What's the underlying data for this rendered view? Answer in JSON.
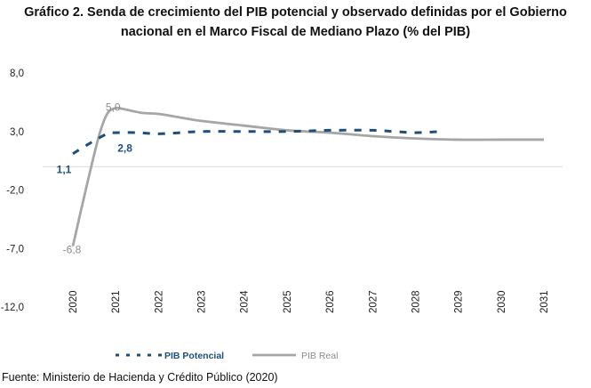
{
  "chart_data": {
    "type": "line",
    "title_line1": "Gráfico 2. Senda de crecimiento del PIB potencial y observado definidas por el Gobierno",
    "title_line2": "nacional en el Marco Fiscal de Mediano Plazo (% del PIB)",
    "xlabel": "",
    "ylabel": "",
    "ylim": [
      -12,
      8
    ],
    "yticks": [
      8,
      3,
      -2,
      -7,
      -12
    ],
    "ytick_labels": [
      "8,0",
      "3,0",
      "-2,0",
      "-7,0",
      "-12,0"
    ],
    "categories": [
      "2020",
      "2021",
      "2022",
      "2023",
      "2024",
      "2025",
      "2026",
      "2027",
      "2028",
      "2029",
      "2030",
      "2031"
    ],
    "xlim": [
      2020,
      2031
    ],
    "series": [
      {
        "name": "PIB Potencial",
        "color": "#1f4e79",
        "style": "dashed",
        "x": [
          2020,
          2020.4,
          2020.8,
          2021,
          2021.5,
          2022,
          2022.5,
          2023,
          2024,
          2025,
          2026,
          2027,
          2027.5,
          2028,
          2028.6
        ],
        "values": [
          1.1,
          2.0,
          2.8,
          2.9,
          2.9,
          2.8,
          2.9,
          3.0,
          3.0,
          3.0,
          3.1,
          3.1,
          3.0,
          2.9,
          3.0
        ]
      },
      {
        "name": "PIB Real",
        "color": "#a6a6a6",
        "style": "solid",
        "x": [
          2020,
          2020.3,
          2020.6,
          2020.8,
          2021,
          2021.2,
          2021.6,
          2022,
          2022.5,
          2023,
          2024,
          2025,
          2026,
          2027,
          2028,
          2029,
          2030,
          2031
        ],
        "values": [
          -6.8,
          -2.0,
          2.5,
          4.5,
          5.0,
          4.9,
          4.6,
          4.5,
          4.2,
          3.9,
          3.5,
          3.1,
          2.9,
          2.6,
          2.4,
          2.3,
          2.3,
          2.3
        ]
      }
    ],
    "data_labels": [
      {
        "series": "PIB Potencial",
        "x": 2020,
        "y": 1.1,
        "text": "1,1"
      },
      {
        "series": "PIB Potencial",
        "x": 2020.8,
        "y": 2.8,
        "text": "2,8"
      },
      {
        "series": "PIB Real",
        "x": 2021,
        "y": 5.0,
        "text": "5,0"
      },
      {
        "series": "PIB Real",
        "x": 2020,
        "y": -6.8,
        "text": "-6,8"
      }
    ],
    "legend": {
      "placement": "bottom",
      "entries": [
        "PIB Potencial",
        "PIB Real"
      ]
    },
    "grid": false,
    "zero_line_color": "#d9d9d9"
  },
  "source": "Fuente: Ministerio de Hacienda y Crédito Público (2020)"
}
